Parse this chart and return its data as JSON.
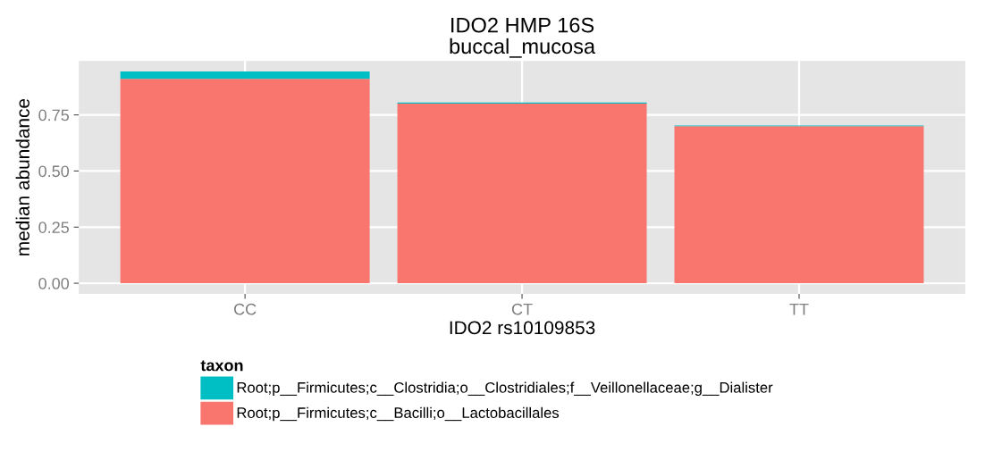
{
  "chart_data": {
    "type": "bar",
    "title": "IDO2 HMP 16S\nbuccal_mucosa",
    "xlabel": "IDO2 rs10109853",
    "ylabel": "median abundance",
    "legend_title": "taxon",
    "categories": [
      "CC",
      "CT",
      "TT"
    ],
    "stacked": true,
    "series": [
      {
        "name": "Root;p__Firmicutes;c__Bacilli;o__Lactobacillales",
        "color": "#f8766d",
        "values": [
          0.911,
          0.8,
          0.7
        ]
      },
      {
        "name": "Root;p__Firmicutes;c__Clostridia;o__Clostridiales;f__Veillonellaceae;g__Dialister",
        "color": "#00bfc4",
        "values": [
          0.032,
          0.005,
          0.003
        ]
      }
    ],
    "ylim": [
      -0.047,
      0.99
    ],
    "yticks": [
      {
        "value": 0,
        "label": "0.00"
      },
      {
        "value": 0.25,
        "label": "0.25"
      },
      {
        "value": 0.5,
        "label": "0.50"
      },
      {
        "value": 0.75,
        "label": "0.75"
      }
    ],
    "grid": true,
    "legend": "bottom"
  }
}
